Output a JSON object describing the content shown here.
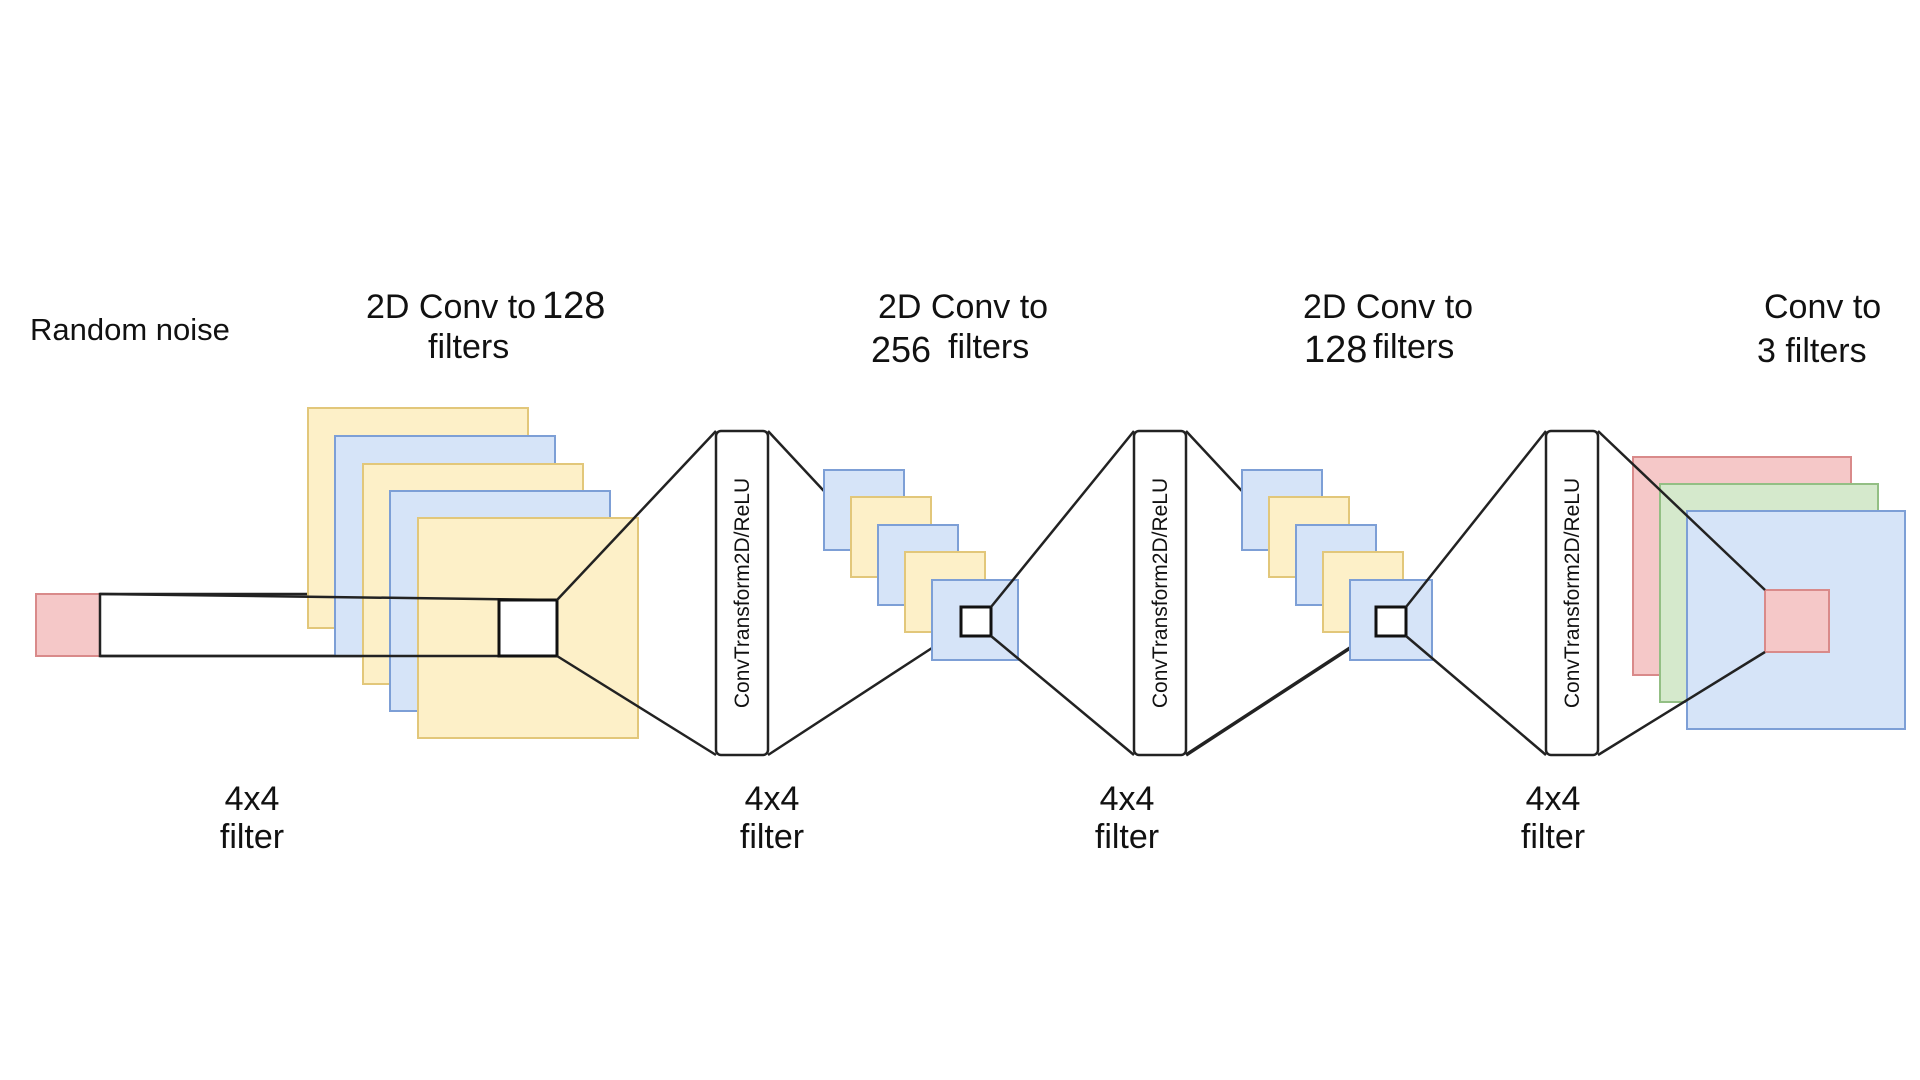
{
  "labels": {
    "input": "Random noise",
    "stage1_title_line1": "2D Conv to",
    "stage1_title_num": "128",
    "stage1_title_line2": "filters",
    "stage2_title_line1": "2D Conv to",
    "stage2_title_num": "256",
    "stage2_title_line2": "filters",
    "stage3_title_line1": "2D Conv to",
    "stage3_title_num": "128",
    "stage3_title_line2": "filters",
    "stage4_title_line1": "Conv to",
    "stage4_title_line2": "3 filters",
    "filter_size": "4x4",
    "filter_word": "filter",
    "block_label": "ConvTransform2D/ReLU"
  },
  "colors": {
    "yellow_fill": "#fdf0c8",
    "yellow_stroke": "#e2c77a",
    "blue_fill": "#d6e4f8",
    "blue_stroke": "#7d9fd6",
    "red_fill": "#f5c8c8",
    "red_stroke": "#d98a8a",
    "green_fill": "#d5e9cc",
    "green_stroke": "#93bf84",
    "line": "#222222"
  }
}
